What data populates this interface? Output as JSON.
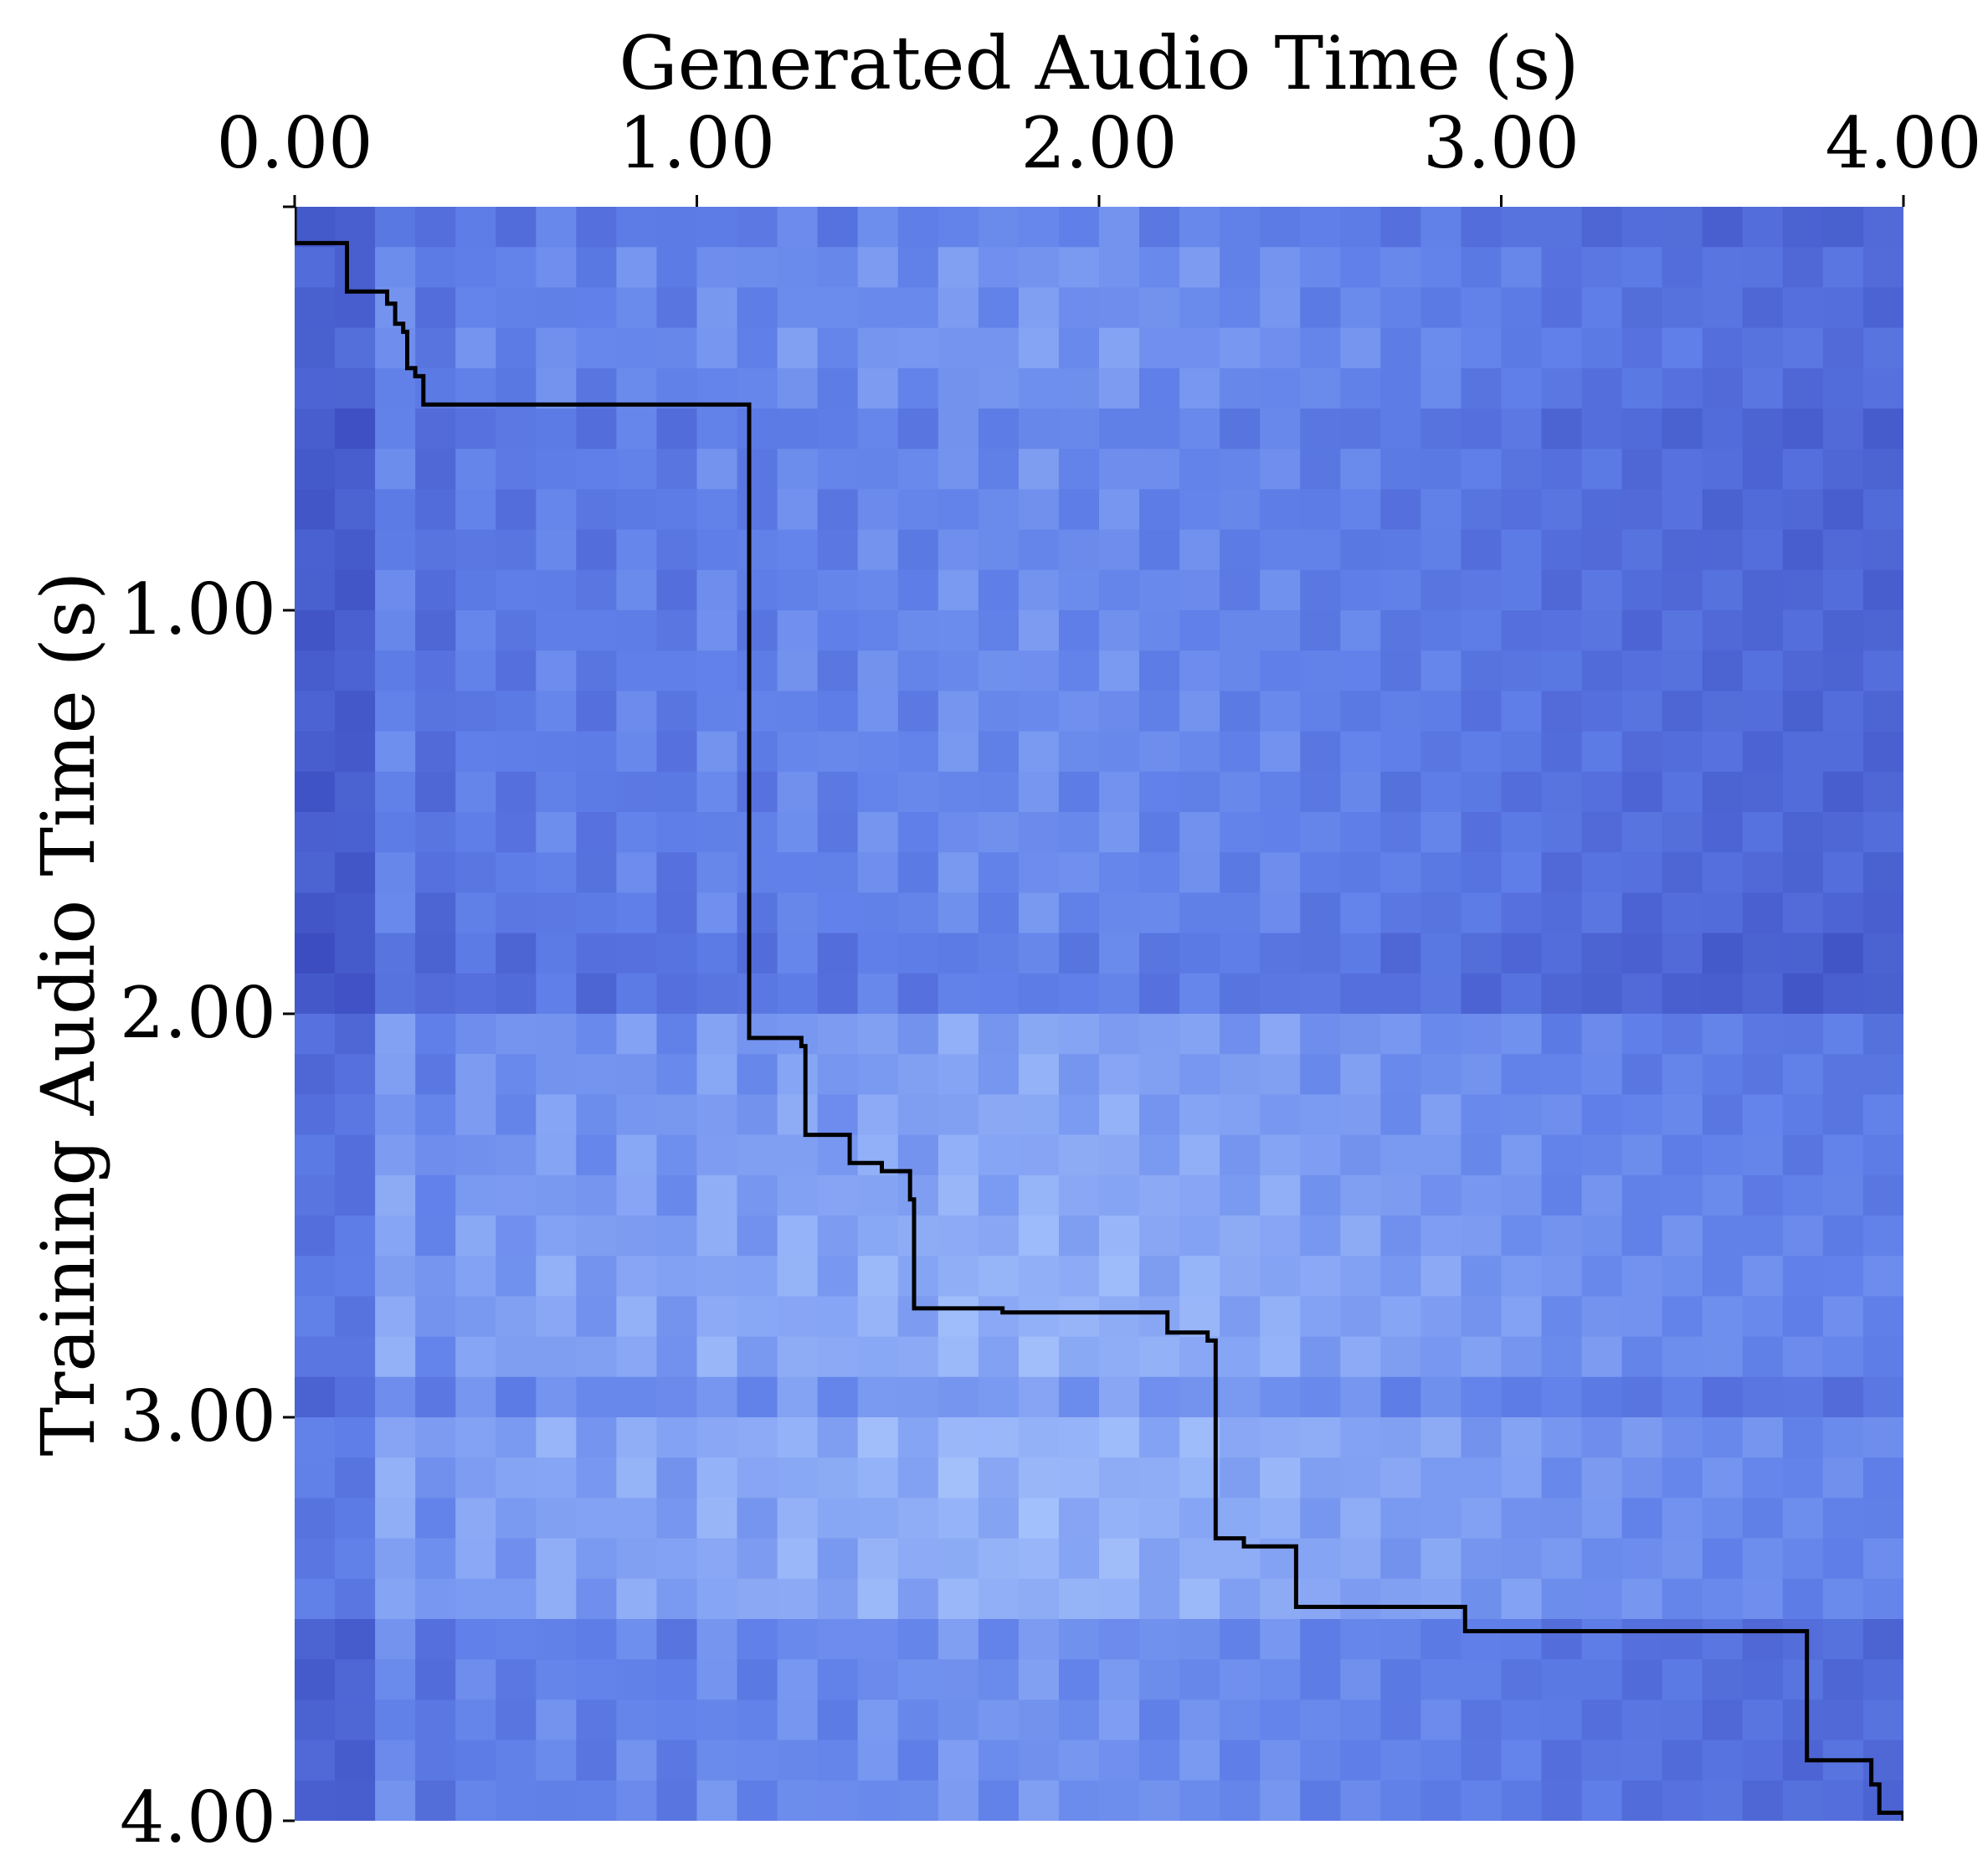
{
  "chart_data": {
    "type": "heatmap",
    "title": "",
    "xlabel": "Generated Audio Time (s)",
    "ylabel": "Training Audio Time (s)",
    "xlim": [
      0,
      4
    ],
    "ylim": [
      0,
      4
    ],
    "x_ticks": [
      0,
      1,
      2,
      3,
      4
    ],
    "x_tick_labels": [
      "0.00",
      "1.00",
      "2.00",
      "3.00",
      "4.00"
    ],
    "y_ticks": [
      1,
      2,
      3,
      4
    ],
    "y_tick_labels": [
      "1.00",
      "2.00",
      "3.00",
      "4.00"
    ],
    "x_axis_position": "top",
    "y_axis_inverted": true,
    "grid": false,
    "colormap": "coolwarm",
    "colors": {
      "low": "#3b4cc0",
      "mid": "#dddddd",
      "high": "#f4cfb8",
      "path": "#000000"
    },
    "series": [
      {
        "type": "step-line",
        "x": [
          0.0,
          0.0,
          0.13,
          0.13,
          0.23,
          0.23,
          0.25,
          0.25,
          0.27,
          0.27,
          0.28,
          0.28,
          0.3,
          0.3,
          0.32,
          0.32,
          1.13,
          1.13,
          1.26,
          1.26,
          1.27,
          1.27,
          1.38,
          1.38,
          1.46,
          1.46,
          1.53,
          1.53,
          1.54,
          1.54,
          1.76,
          1.76,
          2.17,
          2.17,
          2.27,
          2.27,
          2.29,
          2.29,
          2.36,
          2.36,
          2.49,
          2.49,
          2.91,
          2.91,
          3.76,
          3.76,
          3.92,
          3.92,
          3.94,
          3.94,
          4.0,
          4.0
        ],
        "y": [
          0.0,
          0.09,
          0.09,
          0.21,
          0.21,
          0.24,
          0.24,
          0.29,
          0.29,
          0.31,
          0.31,
          0.4,
          0.4,
          0.42,
          0.42,
          0.49,
          0.49,
          2.06,
          2.06,
          2.08,
          2.08,
          2.3,
          2.3,
          2.37,
          2.37,
          2.39,
          2.39,
          2.46,
          2.46,
          2.73,
          2.73,
          2.74,
          2.74,
          2.79,
          2.79,
          2.81,
          2.81,
          3.3,
          3.3,
          3.32,
          3.32,
          3.47,
          3.47,
          3.53,
          3.53,
          3.85,
          3.85,
          3.91,
          3.91,
          3.98,
          3.98,
          4.02
        ]
      }
    ],
    "heatmap": {
      "rows": 40,
      "cols": 40,
      "description_keys": "value in [0,1] blue(low)->white->orange(high)",
      "row_profile": [
        0.2,
        0.33,
        0.3,
        0.36,
        0.3,
        0.18,
        0.26,
        0.22,
        0.22,
        0.24,
        0.24,
        0.25,
        0.24,
        0.26,
        0.22,
        0.25,
        0.24,
        0.22,
        0.12,
        0.12,
        0.45,
        0.45,
        0.48,
        0.5,
        0.52,
        0.55,
        0.58,
        0.58,
        0.58,
        0.38,
        0.62,
        0.6,
        0.58,
        0.58,
        0.58,
        0.3,
        0.3,
        0.3,
        0.3,
        0.3
      ],
      "col_profile": [
        0.1,
        0.25,
        0.55,
        0.45,
        0.5,
        0.55,
        0.55,
        0.55,
        0.55,
        0.55,
        0.6,
        0.6,
        0.62,
        0.62,
        0.64,
        0.66,
        0.68,
        0.7,
        0.7,
        0.7,
        0.68,
        0.66,
        0.64,
        0.64,
        0.62,
        0.58,
        0.56,
        0.54,
        0.52,
        0.5,
        0.46,
        0.42,
        0.4,
        0.38,
        0.36,
        0.34,
        0.32,
        0.3,
        0.3,
        0.28
      ]
    }
  }
}
